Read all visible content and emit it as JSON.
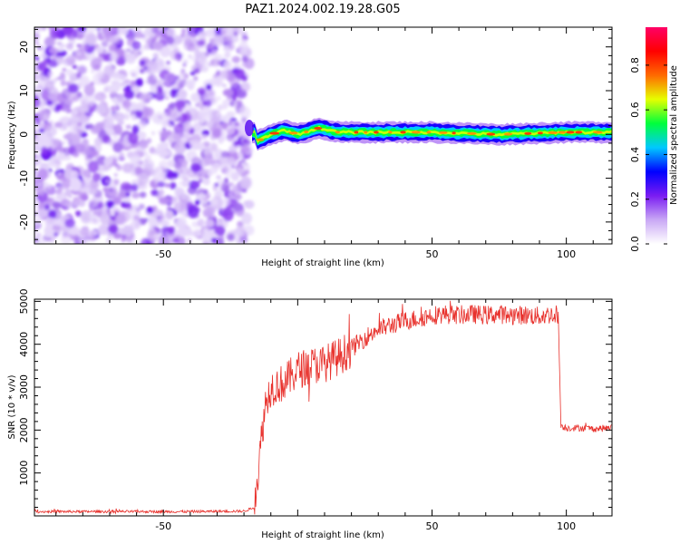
{
  "title": "PAZ1.2024.002.19.28.G05",
  "colors": {
    "snr_line": "#e8312c",
    "spectrogram_noise": "#8a2be2",
    "colormap": [
      "#ffffff",
      "#c9a8f5",
      "#7a1cf2",
      "#0000ff",
      "#00c8ff",
      "#00ff3c",
      "#e6ff00",
      "#ff6a00",
      "#ff0000",
      "#ff0066"
    ]
  },
  "chart_data": [
    {
      "type": "heatmap",
      "xlabel": "Height of straight line (km)",
      "ylabel": "Frequency (Hz)",
      "xlim": [
        -98,
        117
      ],
      "ylim": [
        -25,
        24.5
      ],
      "xticks": [
        -50,
        0,
        50,
        100
      ],
      "xtick_labels": [
        "-50",
        "",
        "50",
        "100"
      ],
      "yticks": [
        -20,
        -10,
        0,
        10,
        20
      ],
      "ytick_labels": [
        "-20",
        "-10",
        "0",
        "10",
        "20"
      ],
      "noise_region_x": [
        -98,
        -20
      ],
      "signal_band_freq_hz": 0.5,
      "signal_band_points": [
        {
          "x": -15,
          "f": -1.5
        },
        {
          "x": -10,
          "f": 0
        },
        {
          "x": -5,
          "f": 1
        },
        {
          "x": 0,
          "f": 0
        },
        {
          "x": 8,
          "f": 1.5
        },
        {
          "x": 15,
          "f": 0.5
        },
        {
          "x": 30,
          "f": 0.5
        },
        {
          "x": 50,
          "f": 0.5
        },
        {
          "x": 75,
          "f": 0
        },
        {
          "x": 100,
          "f": 0.5
        },
        {
          "x": 117,
          "f": 0.5
        }
      ],
      "colorbar": {
        "label": "Normalized spectral amplitude",
        "ticks": [
          0.0,
          0.2,
          0.4,
          0.6,
          0.8
        ],
        "tick_labels": [
          "0.0",
          "0.2",
          "0.4",
          "0.6",
          "0.8"
        ],
        "range": [
          0,
          0.97
        ]
      }
    },
    {
      "type": "line",
      "xlabel": "Height of straight line (km)",
      "ylabel": "SNR (10 * v/v)",
      "xlim": [
        -98,
        117
      ],
      "ylim": [
        0,
        5050
      ],
      "xticks": [
        -50,
        0,
        50,
        100
      ],
      "xtick_labels": [
        "-50",
        "",
        "50",
        "100"
      ],
      "yticks": [
        1000,
        2000,
        3000,
        4000,
        5000
      ],
      "ytick_labels": [
        "1000",
        "2000",
        "3000",
        "4000",
        "5000"
      ],
      "series": [
        {
          "x": [
            -98,
            -80,
            -60,
            -40,
            -20,
            -16,
            -14,
            -13,
            -12,
            -10,
            -5,
            0,
            5,
            10,
            15,
            20,
            25,
            30,
            35,
            40,
            45,
            50,
            55,
            60,
            65,
            70,
            75,
            80,
            85,
            90,
            95,
            97,
            98,
            100,
            105,
            110,
            117
          ],
          "y": [
            100,
            100,
            100,
            100,
            110,
            200,
            1500,
            2100,
            2600,
            3000,
            3100,
            3400,
            3500,
            3550,
            3700,
            3900,
            4150,
            4350,
            4450,
            4550,
            4600,
            4680,
            4700,
            4680,
            4700,
            4680,
            4700,
            4680,
            4680,
            4650,
            4700,
            4700,
            2100,
            2050,
            2050,
            2030,
            2050
          ]
        }
      ]
    }
  ]
}
